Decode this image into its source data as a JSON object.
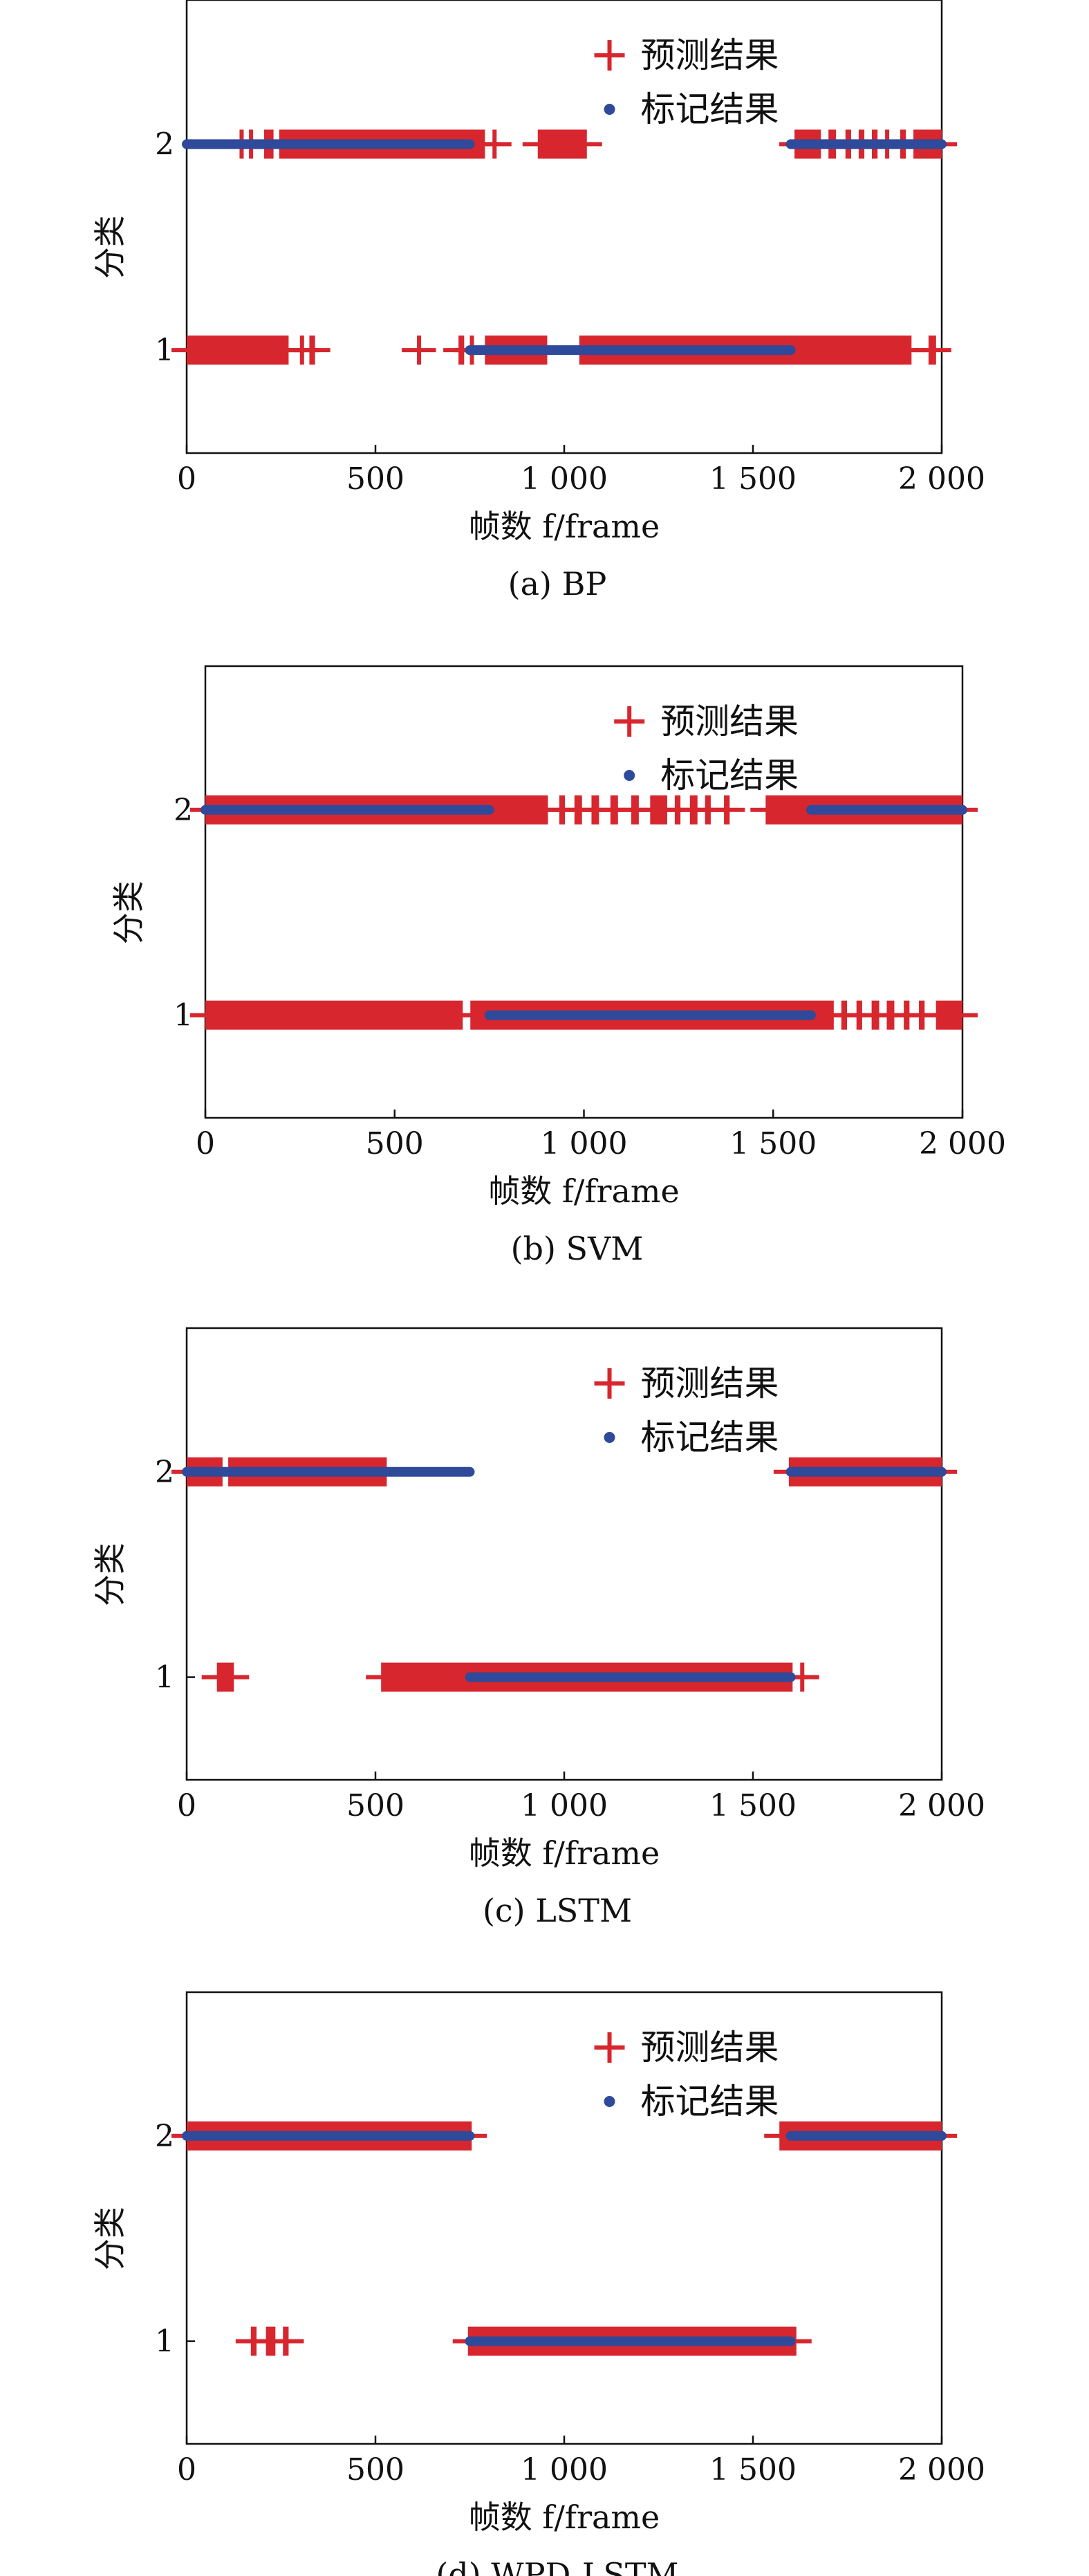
{
  "colors": {
    "predicted": "#d7262e",
    "labeled": "#2f4a9a",
    "axis": "#111111"
  },
  "chart_data": [
    {
      "type": "scatter",
      "caption": "(a) BP",
      "xlabel": "帧数 f/frame",
      "ylabel": "分类",
      "xlim": [
        0,
        2000
      ],
      "ylim": [
        0.5,
        2.7
      ],
      "x_ticks": [
        0,
        500,
        1000,
        1500,
        2000
      ],
      "x_tick_labels": [
        "0",
        "500",
        "1 000",
        "1 500",
        "2 000"
      ],
      "y_ticks": [
        1,
        2
      ],
      "y_tick_labels": [
        "1",
        "2"
      ],
      "legend": {
        "position": "top-right",
        "entries": [
          "预测结果",
          "标记结果"
        ]
      },
      "series": [
        {
          "name": "预测结果",
          "marker": "plus",
          "segments": [
            {
              "y": 2,
              "x": [
                140,
                150
              ]
            },
            {
              "y": 2,
              "x": [
                165,
                175
              ]
            },
            {
              "y": 2,
              "x": [
                205,
                230
              ]
            },
            {
              "y": 2,
              "x": [
                245,
                790
              ]
            },
            {
              "y": 2,
              "x": [
                810,
                820
              ]
            },
            {
              "y": 2,
              "x": [
                930,
                1060
              ]
            },
            {
              "y": 2,
              "x": [
                1610,
                1680
              ]
            },
            {
              "y": 2,
              "x": [
                1700,
                1720
              ]
            },
            {
              "y": 2,
              "x": [
                1745,
                1760
              ]
            },
            {
              "y": 2,
              "x": [
                1780,
                1795
              ]
            },
            {
              "y": 2,
              "x": [
                1815,
                1830
              ]
            },
            {
              "y": 2,
              "x": [
                1850,
                1860
              ]
            },
            {
              "y": 2,
              "x": [
                1890,
                1905
              ]
            },
            {
              "y": 2,
              "x": [
                1925,
                2000
              ]
            },
            {
              "y": 1,
              "x": [
                0,
                270
              ]
            },
            {
              "y": 1,
              "x": [
                300,
                310
              ]
            },
            {
              "y": 1,
              "x": [
                325,
                340
              ]
            },
            {
              "y": 1,
              "x": [
                610,
                620
              ]
            },
            {
              "y": 1,
              "x": [
                720,
                735
              ]
            },
            {
              "y": 1,
              "x": [
                750,
                760
              ]
            },
            {
              "y": 1,
              "x": [
                790,
                955
              ]
            },
            {
              "y": 1,
              "x": [
                1040,
                1920
              ]
            },
            {
              "y": 1,
              "x": [
                1965,
                1985
              ]
            }
          ]
        },
        {
          "name": "标记结果",
          "marker": "dot",
          "segments": [
            {
              "y": 2,
              "x": [
                0,
                750
              ]
            },
            {
              "y": 2,
              "x": [
                1600,
                2000
              ]
            },
            {
              "y": 1,
              "x": [
                750,
                1600
              ]
            }
          ]
        }
      ]
    },
    {
      "type": "scatter",
      "caption": "(b) SVM",
      "xlabel": "帧数 f/frame",
      "ylabel": "分类",
      "xlim": [
        0,
        2000
      ],
      "ylim": [
        0.5,
        2.7
      ],
      "x_ticks": [
        0,
        500,
        1000,
        1500,
        2000
      ],
      "x_tick_labels": [
        "0",
        "500",
        "1 000",
        "1 500",
        "2 000"
      ],
      "y_ticks": [
        1,
        2
      ],
      "y_tick_labels": [
        "1",
        "2"
      ],
      "legend": {
        "position": "top-right",
        "entries": [
          "预测结果",
          "标记结果"
        ]
      },
      "series": [
        {
          "name": "预测结果",
          "marker": "plus",
          "segments": [
            {
              "y": 2,
              "x": [
                0,
                905
              ]
            },
            {
              "y": 2,
              "x": [
                935,
                950
              ]
            },
            {
              "y": 2,
              "x": [
                975,
                995
              ]
            },
            {
              "y": 2,
              "x": [
                1020,
                1040
              ]
            },
            {
              "y": 2,
              "x": [
                1070,
                1090
              ]
            },
            {
              "y": 2,
              "x": [
                1125,
                1145
              ]
            },
            {
              "y": 2,
              "x": [
                1175,
                1220
              ]
            },
            {
              "y": 2,
              "x": [
                1240,
                1255
              ]
            },
            {
              "y": 2,
              "x": [
                1280,
                1300
              ]
            },
            {
              "y": 2,
              "x": [
                1320,
                1335
              ]
            },
            {
              "y": 2,
              "x": [
                1370,
                1385
              ]
            },
            {
              "y": 2,
              "x": [
                1480,
                2000
              ]
            },
            {
              "y": 1,
              "x": [
                0,
                680
              ]
            },
            {
              "y": 1,
              "x": [
                700,
                1660
              ]
            },
            {
              "y": 1,
              "x": [
                1680,
                1695
              ]
            },
            {
              "y": 1,
              "x": [
                1720,
                1735
              ]
            },
            {
              "y": 1,
              "x": [
                1760,
                1780
              ]
            },
            {
              "y": 1,
              "x": [
                1800,
                1820
              ]
            },
            {
              "y": 1,
              "x": [
                1845,
                1860
              ]
            },
            {
              "y": 1,
              "x": [
                1885,
                1900
              ]
            },
            {
              "y": 1,
              "x": [
                1930,
                2000
              ]
            }
          ]
        },
        {
          "name": "标记结果",
          "marker": "dot",
          "segments": [
            {
              "y": 2,
              "x": [
                0,
                750
              ]
            },
            {
              "y": 2,
              "x": [
                1600,
                2000
              ]
            },
            {
              "y": 1,
              "x": [
                750,
                1600
              ]
            }
          ]
        }
      ]
    },
    {
      "type": "scatter",
      "caption": "(c) LSTM",
      "xlabel": "帧数 f/frame",
      "ylabel": "分类",
      "xlim": [
        0,
        2000
      ],
      "ylim": [
        0.5,
        2.7
      ],
      "x_ticks": [
        0,
        500,
        1000,
        1500,
        2000
      ],
      "x_tick_labels": [
        "0",
        "500",
        "1 000",
        "1 500",
        "2 000"
      ],
      "y_ticks": [
        1,
        2
      ],
      "y_tick_labels": [
        "1",
        "2"
      ],
      "legend": {
        "position": "top-right",
        "entries": [
          "预测结果",
          "标记结果"
        ]
      },
      "series": [
        {
          "name": "预测结果",
          "marker": "plus",
          "segments": [
            {
              "y": 2,
              "x": [
                0,
                95
              ]
            },
            {
              "y": 2,
              "x": [
                110,
                530
              ]
            },
            {
              "y": 2,
              "x": [
                1595,
                2000
              ]
            },
            {
              "y": 1,
              "x": [
                80,
                125
              ]
            },
            {
              "y": 1,
              "x": [
                515,
                1605
              ]
            },
            {
              "y": 1,
              "x": [
                1625,
                1635
              ]
            }
          ]
        },
        {
          "name": "标记结果",
          "marker": "dot",
          "segments": [
            {
              "y": 2,
              "x": [
                0,
                750
              ]
            },
            {
              "y": 2,
              "x": [
                1600,
                2000
              ]
            },
            {
              "y": 1,
              "x": [
                750,
                1600
              ]
            }
          ]
        }
      ]
    },
    {
      "type": "scatter",
      "caption": "(d) WPD-LSTM",
      "xlabel": "帧数 f/frame",
      "ylabel": "分类",
      "xlim": [
        0,
        2000
      ],
      "ylim": [
        0.5,
        2.7
      ],
      "x_ticks": [
        0,
        500,
        1000,
        1500,
        2000
      ],
      "x_tick_labels": [
        "0",
        "500",
        "1 000",
        "1 500",
        "2 000"
      ],
      "y_ticks": [
        1,
        2
      ],
      "y_tick_labels": [
        "1",
        "2"
      ],
      "legend": {
        "position": "top-right",
        "entries": [
          "预测结果",
          "标记结果"
        ]
      },
      "series": [
        {
          "name": "预测结果",
          "marker": "plus",
          "segments": [
            {
              "y": 2,
              "x": [
                0,
                755
              ]
            },
            {
              "y": 2,
              "x": [
                1570,
                2000
              ]
            },
            {
              "y": 1,
              "x": [
                170,
                185
              ]
            },
            {
              "y": 1,
              "x": [
                210,
                235
              ]
            },
            {
              "y": 1,
              "x": [
                255,
                270
              ]
            },
            {
              "y": 1,
              "x": [
                745,
                1615
              ]
            }
          ]
        },
        {
          "name": "标记结果",
          "marker": "dot",
          "segments": [
            {
              "y": 2,
              "x": [
                0,
                750
              ]
            },
            {
              "y": 2,
              "x": [
                1600,
                2000
              ]
            },
            {
              "y": 1,
              "x": [
                750,
                1600
              ]
            }
          ]
        }
      ]
    }
  ]
}
